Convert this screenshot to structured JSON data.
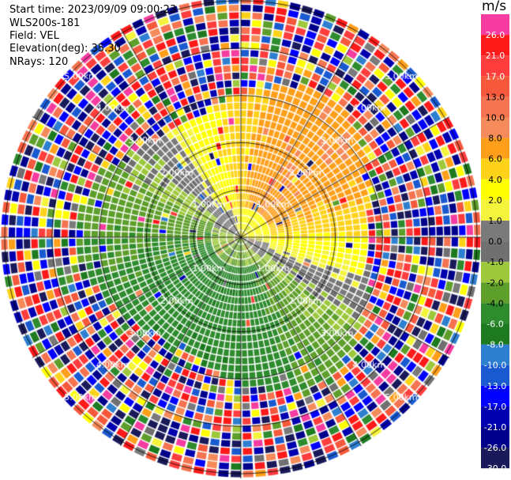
{
  "header": {
    "start_time": "Start time: 2023/09/09 09:00:23",
    "instrument": "WLS200s-181",
    "field": "Field: VEL",
    "elevation": "Elevation(deg): 35.30",
    "nrays": "NRays: 120"
  },
  "colorbar": {
    "unit": "m/s",
    "ticks": [
      "26.0",
      "21.0",
      "17.0",
      "13.0",
      "10.0",
      "8.0",
      "6.0",
      "4.0",
      "2.0",
      "1.0",
      "0.0",
      "-1.0",
      "-2.0",
      "-4.0",
      "-6.0",
      "-8.0",
      "-10.0",
      "-13.0",
      "-17.0",
      "-21.0",
      "-26.0",
      "-30.0"
    ],
    "colors": [
      "#f63ca0",
      "#ff1a1a",
      "#ff3d3d",
      "#f5583a",
      "#f57350",
      "#f58a5a",
      "#ff9f1a",
      "#ffd21a",
      "#ffff00",
      "#f4f43c",
      "#7a7a7a",
      "#707070",
      "#9ec83c",
      "#5e9e2a",
      "#2e8b2e",
      "#1e7a1e",
      "#2f7fd0",
      "#1a5ad0",
      "#0000ff",
      "#0000b0",
      "#00008b",
      "#1a1a5a"
    ]
  },
  "chart_data": {
    "type": "heatmap",
    "title": "",
    "subtitle": "",
    "projection": "polar (PPI scan)",
    "field": "VEL",
    "units": "m/s",
    "elevation_deg": 35.3,
    "n_rays": 120,
    "range_ring_labels": [
      "1.00km",
      "2.00km",
      "3.00km",
      "4.00km",
      "5.00km"
    ],
    "range_rings_km": [
      1,
      2,
      3,
      4,
      5
    ],
    "max_range_km": 5.1,
    "color_scale_m_s": [
      -30.0,
      -26.0,
      -21.0,
      -17.0,
      -13.0,
      -10.0,
      -8.0,
      -6.0,
      -4.0,
      -2.0,
      -1.0,
      0.0,
      1.0,
      2.0,
      4.0,
      6.0,
      8.0,
      10.0,
      13.0,
      17.0,
      21.0,
      26.0
    ],
    "observed_pattern": {
      "north_east_sector_0_to_3km": "positive velocities 6 to 10 m/s (orange/salmon)",
      "north_west_sector_0_to_3km": "positive velocities 2 to 6 m/s (yellow/orange)",
      "south_west_sector_0_to_3km": "negative velocities -4 to -10 m/s (green/blue)",
      "south_east_sector_0_to_3km": "negative velocities -2 to -6 m/s (green)",
      "beyond_3km": "noise (random colors across full scale)"
    }
  }
}
